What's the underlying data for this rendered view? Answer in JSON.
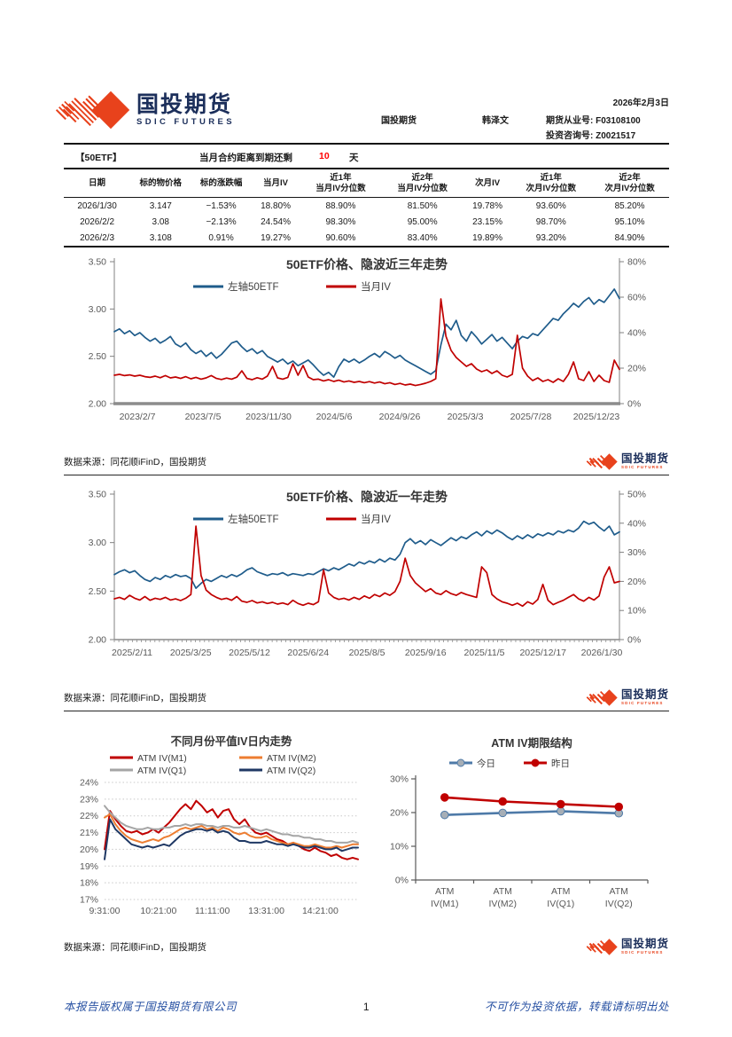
{
  "report": {
    "date": "2026年2月3日",
    "company_cn": "国投期货",
    "company_en": "SDIC FUTURES",
    "company_center": "国投期货",
    "analyst": "韩泽文",
    "license_futures": "期货从业号: F03108100",
    "license_advisory": "投资咨询号: Z0021517",
    "data_source": "数据来源：同花顺iFinD，国投期货",
    "page_number": "1",
    "footer_left": "本报告版权属于国投期货有限公司",
    "footer_right": "不可作为投资依据，转载请标明出处"
  },
  "contract": {
    "name": "【50ETF】",
    "label": "当月合约距离到期还剩",
    "days_left": "10",
    "unit": "天"
  },
  "colors": {
    "highlight_red": "#ff0000",
    "line_blue": "#1f5c8b",
    "line_red": "#c00000",
    "line_orange": "#ed7d31",
    "line_gray": "#a5a5a5",
    "line_navy": "#1f3864",
    "logo_red": "#e8421c",
    "logo_navy": "#1c2f5b",
    "footer_blue": "#2952a3"
  },
  "table": {
    "headers": [
      [
        "日期"
      ],
      [
        "标的物价格"
      ],
      [
        "标的涨跌幅"
      ],
      [
        "当月IV"
      ],
      [
        "近1年",
        "当月IV分位数"
      ],
      [
        "近2年",
        "当月IV分位数"
      ],
      [
        "次月IV"
      ],
      [
        "近1年",
        "次月IV分位数"
      ],
      [
        "近2年",
        "次月IV分位数"
      ]
    ],
    "rows": [
      [
        "2026/1/30",
        "3.147",
        "−1.53%",
        "18.80%",
        "88.90%",
        "81.50%",
        "19.78%",
        "93.60%",
        "85.20%"
      ],
      [
        "2026/2/2",
        "3.08",
        "−2.13%",
        "24.54%",
        "98.30%",
        "95.00%",
        "23.15%",
        "98.70%",
        "95.10%"
      ],
      [
        "2026/2/3",
        "3.108",
        "0.91%",
        "19.27%",
        "90.60%",
        "83.40%",
        "19.89%",
        "93.20%",
        "84.90%"
      ]
    ]
  },
  "chart_data": [
    {
      "type": "line",
      "title": "50ETF价格、隐波近三年走势",
      "x_ticks": [
        "2023/2/7",
        "2023/7/5",
        "2023/11/30",
        "2024/5/6",
        "2024/9/26",
        "2025/3/3",
        "2025/7/28",
        "2025/12/23"
      ],
      "left_axis": {
        "min": 2.0,
        "max": 3.5,
        "ticks": [
          3.5,
          3.0,
          2.5,
          2.0
        ],
        "format": "f2"
      },
      "right_axis": {
        "min": 0,
        "max": 80,
        "ticks": [
          80,
          60,
          40,
          20,
          0
        ],
        "format": "p0"
      },
      "gridlines": false,
      "legend_position": "top-center",
      "series": [
        {
          "name": "左轴50ETF",
          "axis": "left",
          "color": "#1f5c8b",
          "values": [
            2.76,
            2.79,
            2.74,
            2.77,
            2.72,
            2.75,
            2.7,
            2.66,
            2.69,
            2.64,
            2.67,
            2.71,
            2.63,
            2.6,
            2.64,
            2.57,
            2.53,
            2.56,
            2.5,
            2.54,
            2.48,
            2.52,
            2.58,
            2.64,
            2.66,
            2.6,
            2.55,
            2.58,
            2.53,
            2.56,
            2.5,
            2.47,
            2.44,
            2.47,
            2.42,
            2.45,
            2.4,
            2.43,
            2.46,
            2.41,
            2.35,
            2.3,
            2.33,
            2.28,
            2.39,
            2.47,
            2.44,
            2.47,
            2.43,
            2.46,
            2.5,
            2.53,
            2.49,
            2.55,
            2.52,
            2.48,
            2.51,
            2.46,
            2.43,
            2.4,
            2.37,
            2.34,
            2.31,
            2.35,
            2.62,
            2.84,
            2.78,
            2.88,
            2.72,
            2.66,
            2.76,
            2.7,
            2.63,
            2.68,
            2.73,
            2.66,
            2.7,
            2.64,
            2.58,
            2.66,
            2.71,
            2.69,
            2.74,
            2.72,
            2.78,
            2.84,
            2.9,
            2.88,
            2.95,
            3.0,
            3.06,
            3.02,
            3.08,
            3.12,
            3.05,
            3.1,
            3.07,
            3.14,
            3.21,
            3.11
          ]
        },
        {
          "name": "当月IV",
          "axis": "right",
          "color": "#c00000",
          "values": [
            16.0,
            16.5,
            15.8,
            16.2,
            15.5,
            16.0,
            15.2,
            14.8,
            15.5,
            14.6,
            15.8,
            14.5,
            15.0,
            14.2,
            15.2,
            14.0,
            14.8,
            13.8,
            14.5,
            15.8,
            14.2,
            13.6,
            14.4,
            13.8,
            14.9,
            18.5,
            14.2,
            13.5,
            14.6,
            13.8,
            15.5,
            21.0,
            14.5,
            13.8,
            14.8,
            22.5,
            16.0,
            21.5,
            15.0,
            13.5,
            13.8,
            12.8,
            13.5,
            12.5,
            13.2,
            12.2,
            12.8,
            12.0,
            12.5,
            11.8,
            12.4,
            11.6,
            12.2,
            11.2,
            11.8,
            10.8,
            11.4,
            10.5,
            11.0,
            10.2,
            10.8,
            11.5,
            12.5,
            14.0,
            59.0,
            38.0,
            30.0,
            26.0,
            23.5,
            21.0,
            22.5,
            19.5,
            18.0,
            19.0,
            17.0,
            18.5,
            16.0,
            15.0,
            16.5,
            38.5,
            20.0,
            15.5,
            13.0,
            14.5,
            12.5,
            13.5,
            12.0,
            14.0,
            12.5,
            16.5,
            23.5,
            14.0,
            13.0,
            18.0,
            12.5,
            16.0,
            13.0,
            12.0,
            24.5,
            19.3
          ]
        }
      ]
    },
    {
      "type": "line",
      "title": "50ETF价格、隐波近一年走势",
      "x_ticks": [
        "2025/2/11",
        "2025/3/25",
        "2025/5/12",
        "2025/6/24",
        "2025/8/5",
        "2025/9/16",
        "2025/11/5",
        "2025/12/17",
        "2026/1/30"
      ],
      "left_axis": {
        "min": 2.0,
        "max": 3.5,
        "ticks": [
          3.5,
          3.0,
          2.5,
          2.0
        ],
        "format": "f2"
      },
      "right_axis": {
        "min": 0,
        "max": 50,
        "ticks": [
          50,
          40,
          30,
          20,
          10,
          0
        ],
        "format": "p0"
      },
      "gridlines": false,
      "legend_position": "top-center",
      "series": [
        {
          "name": "左轴50ETF",
          "axis": "left",
          "color": "#1f5c8b",
          "values": [
            2.67,
            2.7,
            2.72,
            2.69,
            2.71,
            2.66,
            2.62,
            2.6,
            2.64,
            2.62,
            2.66,
            2.64,
            2.67,
            2.65,
            2.66,
            2.63,
            2.53,
            2.58,
            2.62,
            2.6,
            2.63,
            2.66,
            2.64,
            2.67,
            2.65,
            2.68,
            2.72,
            2.74,
            2.7,
            2.68,
            2.66,
            2.68,
            2.67,
            2.69,
            2.66,
            2.68,
            2.67,
            2.66,
            2.68,
            2.67,
            2.7,
            2.73,
            2.71,
            2.74,
            2.72,
            2.75,
            2.78,
            2.76,
            2.8,
            2.78,
            2.81,
            2.79,
            2.83,
            2.8,
            2.84,
            2.82,
            2.88,
            3.0,
            3.04,
            2.99,
            3.02,
            2.98,
            3.03,
            3.0,
            2.97,
            3.01,
            3.05,
            3.02,
            3.06,
            3.04,
            3.08,
            3.11,
            3.07,
            3.12,
            3.09,
            3.13,
            3.1,
            3.06,
            3.03,
            3.07,
            3.04,
            3.08,
            3.05,
            3.09,
            3.07,
            3.1,
            3.08,
            3.12,
            3.1,
            3.13,
            3.11,
            3.15,
            3.22,
            3.19,
            3.21,
            3.16,
            3.12,
            3.17,
            3.08,
            3.11
          ]
        },
        {
          "name": "当月IV",
          "axis": "right",
          "color": "#c00000",
          "values": [
            14.0,
            14.5,
            13.8,
            15.2,
            14.2,
            13.6,
            14.8,
            13.5,
            14.2,
            13.8,
            14.5,
            13.6,
            14.0,
            13.4,
            14.2,
            15.5,
            39.0,
            22.0,
            17.0,
            15.5,
            14.5,
            13.8,
            14.2,
            13.5,
            14.8,
            13.2,
            12.8,
            13.4,
            12.6,
            13.0,
            12.4,
            12.8,
            12.2,
            12.6,
            12.0,
            13.5,
            12.4,
            11.8,
            12.5,
            12.0,
            13.0,
            24.0,
            16.0,
            14.5,
            13.8,
            14.2,
            13.6,
            14.5,
            13.8,
            15.0,
            14.2,
            15.5,
            14.8,
            16.0,
            15.2,
            16.5,
            20.0,
            28.0,
            22.0,
            19.5,
            18.0,
            16.5,
            17.5,
            16.0,
            15.5,
            16.8,
            15.8,
            15.2,
            16.2,
            15.5,
            15.0,
            14.5,
            25.0,
            23.0,
            15.5,
            14.0,
            13.0,
            12.5,
            11.8,
            12.5,
            11.5,
            13.0,
            12.2,
            13.8,
            19.0,
            13.5,
            12.0,
            12.8,
            13.5,
            14.5,
            15.5,
            14.0,
            13.2,
            14.5,
            13.6,
            15.0,
            21.5,
            25.0,
            19.5,
            20.0
          ]
        }
      ]
    },
    {
      "type": "line",
      "title": "不同月份平值IV日内走势",
      "x_ticks": [
        "9:31:00",
        "10:21:00",
        "11:11:00",
        "13:31:00",
        "14:21:00"
      ],
      "left_axis": {
        "min": 17,
        "max": 24,
        "ticks": [
          24,
          23,
          22,
          21,
          20,
          19,
          18,
          17
        ],
        "format": "p0"
      },
      "gridlines": true,
      "legend_position": "top-two-rows",
      "series": [
        {
          "name": "ATM IV(M1)",
          "axis": "left",
          "color": "#c00000",
          "values": [
            20.0,
            22.3,
            21.8,
            21.4,
            21.1,
            21.0,
            21.1,
            20.9,
            21.0,
            21.2,
            21.0,
            21.3,
            21.6,
            22.0,
            22.4,
            22.7,
            22.4,
            22.9,
            22.6,
            22.2,
            22.4,
            21.9,
            22.3,
            22.4,
            21.8,
            21.5,
            21.8,
            21.3,
            21.0,
            20.9,
            21.0,
            20.8,
            20.6,
            20.5,
            20.3,
            20.4,
            20.2,
            20.0,
            19.9,
            20.1,
            19.9,
            19.8,
            19.6,
            19.7,
            19.5,
            19.4,
            19.5,
            19.4
          ]
        },
        {
          "name": "ATM IV(M2)",
          "axis": "left",
          "color": "#ed7d31",
          "values": [
            21.9,
            22.1,
            21.5,
            21.1,
            20.8,
            20.6,
            20.5,
            20.4,
            20.5,
            20.6,
            20.5,
            20.7,
            20.8,
            21.0,
            21.2,
            21.3,
            21.2,
            21.3,
            21.4,
            21.2,
            21.3,
            21.1,
            21.3,
            21.2,
            21.0,
            20.9,
            21.0,
            20.8,
            20.7,
            20.7,
            20.8,
            20.6,
            20.5,
            20.4,
            20.3,
            20.4,
            20.3,
            20.2,
            20.2,
            20.3,
            20.2,
            20.1,
            20.1,
            20.2,
            20.1,
            20.2,
            20.3,
            20.3
          ]
        },
        {
          "name": "ATM IV(Q1)",
          "axis": "left",
          "color": "#a5a5a5",
          "values": [
            22.6,
            22.2,
            21.9,
            21.6,
            21.4,
            21.3,
            21.2,
            21.2,
            21.3,
            21.2,
            21.2,
            21.3,
            21.3,
            21.4,
            21.4,
            21.5,
            21.4,
            21.5,
            21.5,
            21.4,
            21.4,
            21.3,
            21.4,
            21.4,
            21.3,
            21.3,
            21.4,
            21.3,
            21.2,
            21.1,
            21.2,
            21.1,
            21.0,
            20.9,
            20.9,
            20.8,
            20.8,
            20.7,
            20.7,
            20.6,
            20.6,
            20.5,
            20.5,
            20.4,
            20.4,
            20.4,
            20.5,
            20.4
          ]
        },
        {
          "name": "ATM IV(Q2)",
          "axis": "left",
          "color": "#1f3864",
          "values": [
            19.4,
            21.8,
            21.2,
            20.9,
            20.6,
            20.3,
            20.2,
            20.1,
            20.2,
            20.1,
            20.2,
            20.3,
            20.2,
            20.5,
            20.8,
            21.0,
            21.1,
            21.2,
            21.2,
            21.1,
            21.2,
            21.0,
            21.1,
            21.0,
            20.7,
            20.5,
            20.5,
            20.4,
            20.4,
            20.4,
            20.5,
            20.4,
            20.3,
            20.3,
            20.2,
            20.3,
            20.2,
            20.1,
            20.1,
            20.2,
            20.1,
            20.0,
            20.0,
            20.1,
            19.9,
            20.0,
            20.1,
            20.1
          ]
        }
      ]
    },
    {
      "type": "line",
      "title": "ATM IV期限结构",
      "categories": [
        "ATM IV(M1)",
        "ATM IV(M2)",
        "ATM IV(Q1)",
        "ATM IV(Q2)"
      ],
      "left_axis": {
        "min": 0,
        "max": 30,
        "ticks": [
          30,
          20,
          10,
          0
        ],
        "format": "p0"
      },
      "gridlines": false,
      "markers": true,
      "legend_position": "top-center",
      "series": [
        {
          "name": "今日",
          "axis": "left",
          "color": "#4e7aa8",
          "marker_color": "#a6aeb6",
          "values": [
            19.3,
            19.9,
            20.4,
            19.8
          ]
        },
        {
          "name": "昨日",
          "axis": "left",
          "color": "#c00000",
          "marker_color": "#c00000",
          "values": [
            24.5,
            23.3,
            22.5,
            21.7
          ]
        }
      ]
    }
  ]
}
